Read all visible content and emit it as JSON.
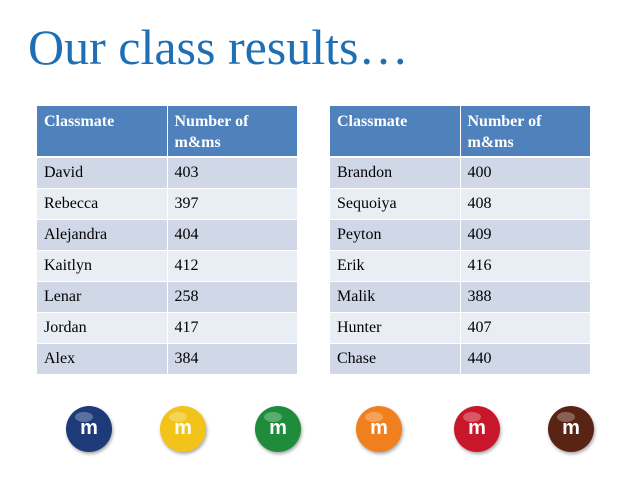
{
  "title": "Our class results…",
  "headers": {
    "classmate": "Classmate",
    "count": "Number of m&ms"
  },
  "left_table": [
    {
      "name": "David",
      "count": "403"
    },
    {
      "name": "Rebecca",
      "count": "397"
    },
    {
      "name": "Alejandra",
      "count": "404"
    },
    {
      "name": "Kaitlyn",
      "count": "412"
    },
    {
      "name": "Lenar",
      "count": "258"
    },
    {
      "name": "Jordan",
      "count": "417"
    },
    {
      "name": "Alex",
      "count": "384"
    }
  ],
  "right_table": [
    {
      "name": "Brandon",
      "count": "400"
    },
    {
      "name": "Sequoiya",
      "count": "408"
    },
    {
      "name": "Peyton",
      "count": "409"
    },
    {
      "name": "Erik",
      "count": "416"
    },
    {
      "name": "Malik",
      "count": "388"
    },
    {
      "name": "Hunter",
      "count": "407"
    },
    {
      "name": "Chase",
      "count": "440"
    }
  ],
  "candies": [
    {
      "label": "m",
      "color": "#1e3a78",
      "icon": "blue-mm-candy-icon"
    },
    {
      "label": "m",
      "color": "#f2c318",
      "icon": "yellow-mm-candy-icon"
    },
    {
      "label": "m",
      "color": "#1e8c3a",
      "icon": "green-mm-candy-icon"
    },
    {
      "label": "m",
      "color": "#f07f1d",
      "icon": "orange-mm-candy-icon"
    },
    {
      "label": "m",
      "color": "#c8172a",
      "icon": "red-mm-candy-icon"
    },
    {
      "label": "m",
      "color": "#5a2414",
      "icon": "brown-mm-candy-icon"
    }
  ],
  "colors": {
    "title": "#1f6fb5",
    "header_bg": "#4f81bd",
    "row_odd": "#d0d8e8",
    "row_even": "#e9edf4"
  }
}
